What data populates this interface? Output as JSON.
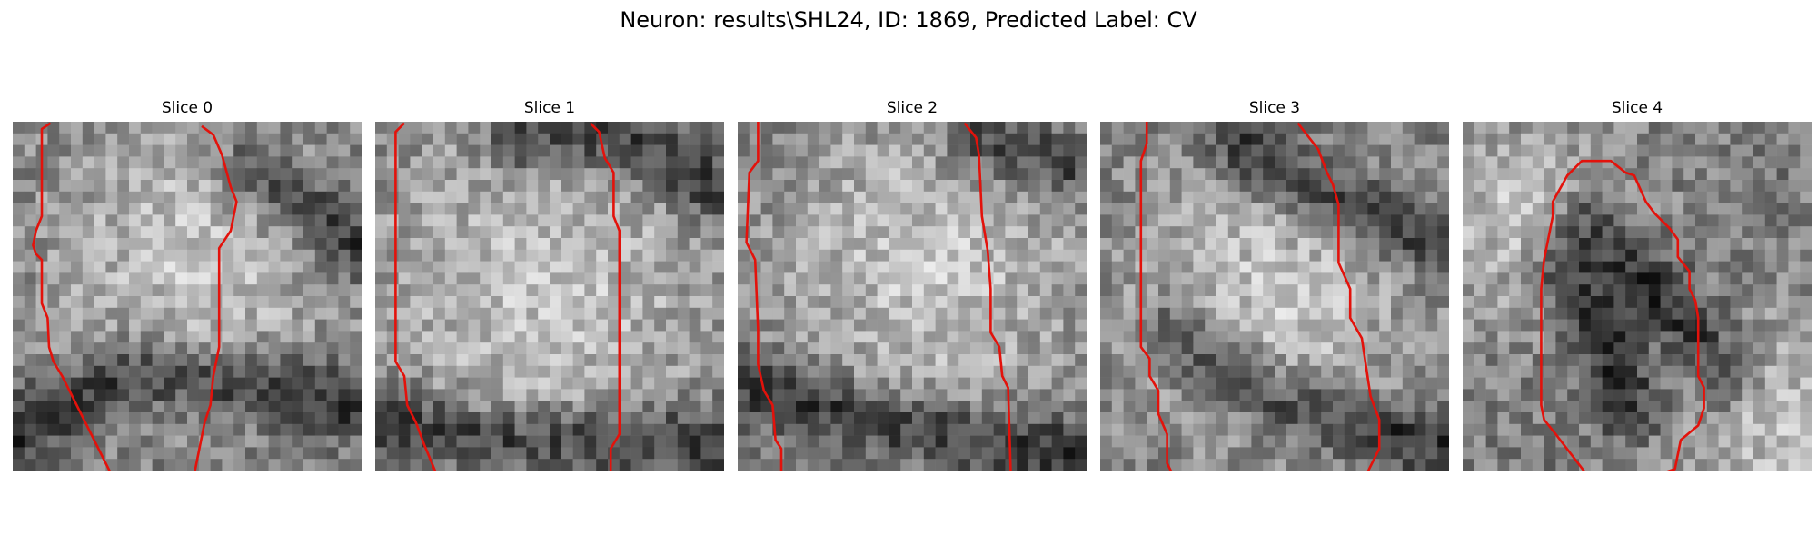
{
  "figure": {
    "title": "Neuron: results\\SHL24, ID: 1869, Predicted Label: CV"
  },
  "panels": [
    {
      "title": "Slice 0",
      "image": "grayscale EM patch with red traced boundary",
      "overlay_color": "#e3120b"
    },
    {
      "title": "Slice 1",
      "image": "grayscale EM patch with red traced boundary",
      "overlay_color": "#e3120b"
    },
    {
      "title": "Slice 2",
      "image": "grayscale EM patch with red traced boundary",
      "overlay_color": "#e3120b"
    },
    {
      "title": "Slice 3",
      "image": "grayscale EM patch with red traced boundary",
      "overlay_color": "#e3120b"
    },
    {
      "title": "Slice 4",
      "image": "grayscale EM patch with red closed contour",
      "overlay_color": "#e3120b"
    }
  ]
}
